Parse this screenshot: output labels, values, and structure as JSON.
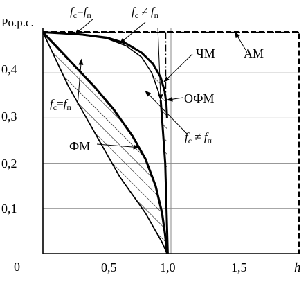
{
  "chart_data": {
    "type": "line",
    "title": "",
    "xlabel": "h",
    "ylabel": "Po.p.c.",
    "xlim": [
      0,
      2.0
    ],
    "ylim": [
      0,
      0.5
    ],
    "grid": true,
    "x_ticks": [
      "0,5",
      "1,0",
      "1,5"
    ],
    "y_ticks": [
      "0,1",
      "0,2",
      "0,3",
      "0,4"
    ],
    "origin_label": "0",
    "series": [
      {
        "name": "ЧМ",
        "style": "thick solid, upper bound",
        "x": [
          0.0,
          0.3,
          0.5,
          0.65,
          0.77,
          0.86,
          0.92,
          0.95,
          0.965,
          0.97
        ],
        "y": [
          0.49,
          0.485,
          0.478,
          0.465,
          0.445,
          0.42,
          0.39,
          0.36,
          0.33,
          0.3
        ]
      },
      {
        "name": "ЧМ",
        "style": "thin solid, lower bound",
        "x": [
          0.0,
          0.3,
          0.5,
          0.65,
          0.77,
          0.85,
          0.9,
          0.92
        ],
        "y": [
          0.49,
          0.484,
          0.476,
          0.46,
          0.435,
          0.4,
          0.36,
          0.34
        ]
      },
      {
        "name": "ЧМ",
        "style": "vertical drop",
        "x": [
          0.92,
          0.955,
          0.975
        ],
        "y": [
          0.34,
          0.2,
          0.0
        ]
      },
      {
        "name": "ФМ",
        "style": "thick solid, outer",
        "x": [
          0.0,
          0.2,
          0.4,
          0.55,
          0.7,
          0.8,
          0.88,
          0.93,
          0.955,
          0.97
        ],
        "y": [
          0.49,
          0.43,
          0.37,
          0.32,
          0.26,
          0.21,
          0.15,
          0.09,
          0.04,
          0.0
        ]
      },
      {
        "name": "ФМ",
        "style": "thin solid, inner",
        "x": [
          0.0,
          0.1,
          0.2,
          0.3,
          0.4,
          0.5,
          0.6,
          0.7,
          0.8,
          0.88,
          0.93,
          0.97
        ],
        "y": [
          0.49,
          0.43,
          0.37,
          0.32,
          0.27,
          0.22,
          0.17,
          0.13,
          0.09,
          0.05,
          0.025,
          0.0
        ]
      },
      {
        "name": "АМ",
        "style": "thick dashed",
        "x": [
          0.0,
          2.0,
          2.0
        ],
        "y": [
          0.49,
          0.49,
          0.0
        ]
      }
    ],
    "curve_labels": [
      "ЧМ",
      "АМ",
      "ОФМ",
      "ФМ"
    ],
    "annotations": [
      {
        "text": "fс=fп",
        "target": "ЧМ upper"
      },
      {
        "text": "fс ≠ fп",
        "target": "ЧМ lower"
      },
      {
        "text": "fс=fп",
        "target": "ФМ upper"
      },
      {
        "text": "fс ≠ fп",
        "target": "ФМ lower"
      }
    ],
    "legend": "none",
    "colors": {
      "curves": "#000000",
      "grid": "#8a8a8a",
      "background": "#ffffff"
    }
  }
}
